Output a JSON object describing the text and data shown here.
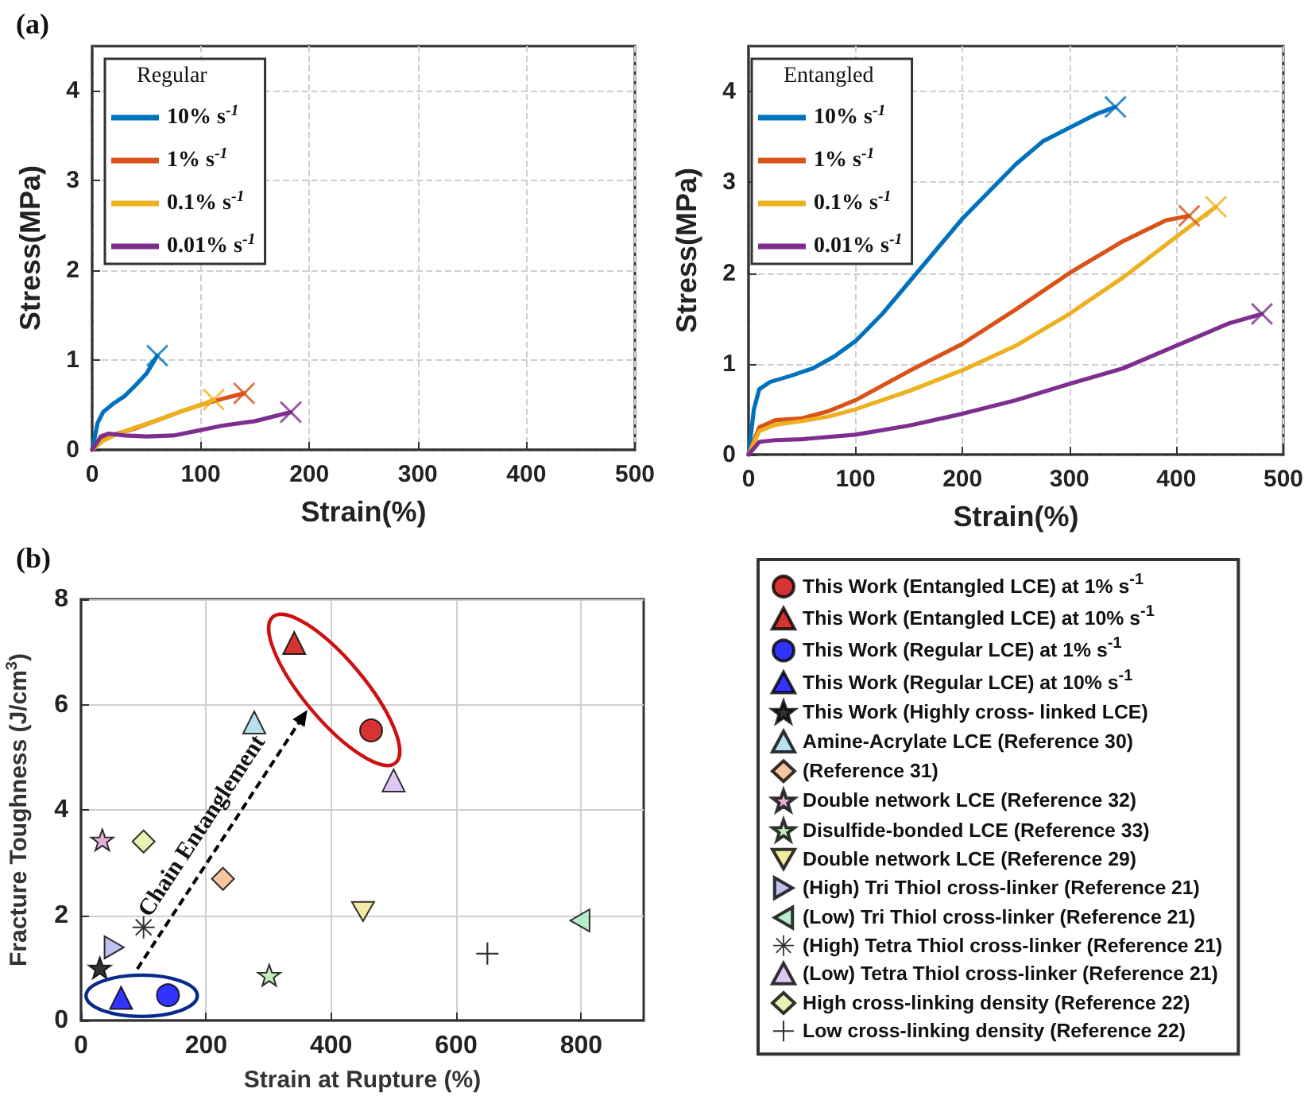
{
  "chart_data": [
    {
      "type": "line",
      "annotations": [
        "(a)"
      ],
      "xlabel": "Strain(%)",
      "ylabel": "Stress(MPa)",
      "legend_title": "Regular",
      "legend": "top left",
      "grid": true,
      "xlim": [
        0,
        500
      ],
      "ylim": [
        0,
        4.5
      ],
      "xticks": [
        0,
        100,
        200,
        300,
        400,
        500
      ],
      "yticks": [
        0,
        1,
        2,
        3,
        4
      ],
      "series": [
        {
          "name": "10% s$^{-1}$",
          "color": "#0072bd",
          "x": [
            0,
            5,
            10,
            20,
            30,
            40,
            50,
            60
          ],
          "values": [
            0,
            0.3,
            0.42,
            0.52,
            0.6,
            0.72,
            0.85,
            1.05
          ]
        },
        {
          "name": "1% s$^{-1}$",
          "color": "#d95319",
          "x": [
            0,
            10,
            20,
            40,
            60,
            80,
            100,
            120,
            140
          ],
          "values": [
            0,
            0.12,
            0.17,
            0.24,
            0.33,
            0.42,
            0.5,
            0.57,
            0.63
          ]
        },
        {
          "name": "0.1% s$^{-1}$",
          "color": "#edb120",
          "x": [
            0,
            10,
            20,
            40,
            60,
            80,
            100,
            112
          ],
          "values": [
            0,
            0.1,
            0.16,
            0.25,
            0.33,
            0.42,
            0.5,
            0.56
          ]
        },
        {
          "name": "0.01% s$^{-1}$",
          "color": "#7e2f8e",
          "x": [
            0,
            8,
            15,
            30,
            50,
            75,
            100,
            120,
            150,
            183
          ],
          "values": [
            0,
            0.15,
            0.18,
            0.16,
            0.15,
            0.16,
            0.22,
            0.27,
            0.32,
            0.42
          ]
        },
        {
          "type": "scatter",
          "marker": "x",
          "color": "#0072bd",
          "x": [
            60
          ],
          "values": [
            1.05
          ]
        },
        {
          "type": "scatter",
          "marker": "x",
          "color": "#d95319",
          "x": [
            140
          ],
          "values": [
            0.63
          ]
        },
        {
          "type": "scatter",
          "marker": "x",
          "color": "#edb120",
          "x": [
            112
          ],
          "values": [
            0.56
          ]
        },
        {
          "type": "scatter",
          "marker": "x",
          "color": "#7e2f8e",
          "x": [
            183
          ],
          "values": [
            0.42
          ]
        }
      ]
    },
    {
      "type": "line",
      "xlabel": "Strain(%)",
      "ylabel": "Stress(MPa)",
      "legend_title": "Entangled",
      "legend": "top left",
      "grid": true,
      "xlim": [
        0,
        500
      ],
      "ylim": [
        0,
        4.5
      ],
      "xticks": [
        0,
        100,
        200,
        300,
        400,
        500
      ],
      "yticks": [
        0,
        1,
        2,
        3,
        4
      ],
      "series": [
        {
          "name": "10% s$^{-1}$",
          "color": "#0072bd",
          "x": [
            0,
            5,
            10,
            20,
            40,
            60,
            80,
            100,
            125,
            150,
            175,
            200,
            225,
            250,
            275,
            300,
            325,
            343
          ],
          "values": [
            0,
            0.5,
            0.72,
            0.8,
            0.87,
            0.95,
            1.08,
            1.25,
            1.55,
            1.9,
            2.25,
            2.6,
            2.9,
            3.2,
            3.45,
            3.6,
            3.75,
            3.83
          ]
        },
        {
          "name": "1% s$^{-1}$",
          "color": "#d95319",
          "x": [
            0,
            10,
            25,
            50,
            75,
            100,
            150,
            200,
            250,
            300,
            350,
            390,
            412
          ],
          "values": [
            0,
            0.3,
            0.38,
            0.4,
            0.48,
            0.6,
            0.92,
            1.22,
            1.6,
            2.0,
            2.35,
            2.58,
            2.63
          ]
        },
        {
          "name": "0.1% s$^{-1}$",
          "color": "#edb120",
          "x": [
            0,
            10,
            25,
            50,
            75,
            100,
            150,
            200,
            250,
            300,
            350,
            400,
            437
          ],
          "values": [
            0,
            0.26,
            0.33,
            0.37,
            0.42,
            0.5,
            0.7,
            0.93,
            1.2,
            1.55,
            1.95,
            2.4,
            2.73
          ]
        },
        {
          "name": "0.01% s$^{-1}$",
          "color": "#7e2f8e",
          "x": [
            0,
            10,
            25,
            50,
            100,
            150,
            200,
            250,
            300,
            350,
            400,
            450,
            480
          ],
          "values": [
            0,
            0.14,
            0.16,
            0.17,
            0.22,
            0.32,
            0.45,
            0.6,
            0.78,
            0.95,
            1.2,
            1.45,
            1.55
          ]
        },
        {
          "type": "scatter",
          "marker": "x",
          "color": "#0072bd",
          "x": [
            343
          ],
          "values": [
            3.83
          ]
        },
        {
          "type": "scatter",
          "marker": "x",
          "color": "#d95319",
          "x": [
            412
          ],
          "values": [
            2.63
          ]
        },
        {
          "type": "scatter",
          "marker": "x",
          "color": "#edb120",
          "x": [
            437
          ],
          "values": [
            2.73
          ]
        },
        {
          "type": "scatter",
          "marker": "x",
          "color": "#7e2f8e",
          "x": [
            480
          ],
          "values": [
            1.55
          ]
        }
      ]
    },
    {
      "type": "scatter",
      "annotations": [
        "(b)",
        "Chain Entanglement"
      ],
      "xlabel": "Strain at Rupture (%)",
      "ylabel": "Fracture Toughness (J/cm$^{3}$)",
      "legend": "right",
      "grid": true,
      "xlim": [
        0,
        900
      ],
      "ylim": [
        0,
        8
      ],
      "xticks": [
        0,
        200,
        400,
        600,
        800
      ],
      "yticks": [
        0,
        2,
        4,
        6,
        8
      ],
      "series": [
        {
          "name": "This Work (Entangled LCE) at 1% s$^{-1}$",
          "marker": "circle",
          "color": "#cc0000",
          "x": [
            464
          ],
          "values": [
            5.51
          ]
        },
        {
          "name": "This Work (Entangled LCE) at 10% s$^{-1}$",
          "marker": "triangle",
          "color": "#cc0000",
          "x": [
            341
          ],
          "values": [
            7.17
          ]
        },
        {
          "name": "This Work (Regular LCE) at 1% s$^{-1}$",
          "marker": "circle",
          "color": "#0000ff",
          "x": [
            139
          ],
          "values": [
            0.48
          ]
        },
        {
          "name": "This Work (Regular LCE) at 10% s$^{-1}$",
          "marker": "triangle",
          "color": "#0000ff",
          "x": [
            64
          ],
          "values": [
            0.43
          ]
        },
        {
          "name": "This Work (Highly cross- linked LCE)",
          "marker": "star",
          "color": "#000000",
          "x": [
            30
          ],
          "values": [
            1.0
          ]
        },
        {
          "name": "Amine-Acrylate LCE (Reference 30)",
          "marker": "triangle",
          "color": "#a8d8ea",
          "x": [
            277
          ],
          "values": [
            5.66
          ]
        },
        {
          "name": "(Reference 31)",
          "marker": "diamond",
          "color": "#f5b88a",
          "x": [
            227
          ],
          "values": [
            2.69
          ]
        },
        {
          "name": "Double network LCE (Reference 32)",
          "marker": "star",
          "color": "#d9a0d0",
          "x": [
            34
          ],
          "values": [
            3.43
          ]
        },
        {
          "name": "Disulfide-bonded LCE (Reference 33)",
          "marker": "star",
          "color": "#b8e8b0",
          "x": [
            301
          ],
          "values": [
            0.86
          ]
        },
        {
          "name": "Double network LCE (Reference 29)",
          "marker": "triangle-down",
          "color": "#f0e68c",
          "x": [
            451
          ],
          "values": [
            2.07
          ]
        },
        {
          "name": "(High) Tri Thiol cross-linker (Reference 21)",
          "marker": "triangle-right",
          "color": "#b0b0f0",
          "x": [
            53
          ],
          "values": [
            1.39
          ]
        },
        {
          "name": "(Low) Tri Thiol cross-linker (Reference 21)",
          "marker": "triangle-left",
          "color": "#a8e8c0",
          "x": [
            798
          ],
          "values": [
            1.9
          ]
        },
        {
          "name": "(High) Tetra Thiol cross-linker (Reference 21)",
          "marker": "asterisk",
          "color": "#000000",
          "x": [
            100
          ],
          "values": [
            1.77
          ]
        },
        {
          "name": "(Low) Tetra Thiol cross-linker (Reference 21)",
          "marker": "triangle",
          "color": "#d8b8f0",
          "x": [
            500
          ],
          "values": [
            4.56
          ]
        },
        {
          "name": "High cross-linking density (Reference 22)",
          "marker": "diamond",
          "color": "#e0f0a0",
          "x": [
            100
          ],
          "values": [
            3.4
          ]
        },
        {
          "name": "Low cross-linking density (Reference 22)",
          "marker": "cross",
          "color": "#000000",
          "x": [
            650
          ],
          "values": [
            1.27
          ]
        }
      ]
    }
  ]
}
